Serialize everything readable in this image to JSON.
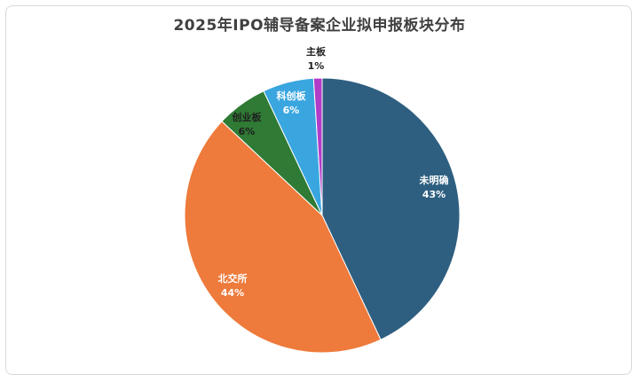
{
  "chart_data": {
    "type": "pie",
    "title": "2025年IPO辅导备案企业拟申报板块分布",
    "start_angle_deg": 0,
    "direction": "clockwise",
    "slices": [
      {
        "label": "未明确",
        "value": 43,
        "value_text": "43%",
        "color": "#2e5f80",
        "label_color": "#ffffff"
      },
      {
        "label": "北交所",
        "value": 44,
        "value_text": "44%",
        "color": "#ee7a3b",
        "label_color": "#ffffff"
      },
      {
        "label": "创业板",
        "value": 6,
        "value_text": "6%",
        "color": "#2f7a34",
        "label_color": "#202020"
      },
      {
        "label": "科创板",
        "value": 6,
        "value_text": "6%",
        "color": "#3aa6e0",
        "label_color": "#ffffff"
      },
      {
        "label": "主板",
        "value": 1,
        "value_text": "1%",
        "color": "#b03cc7",
        "label_color": "#202020"
      }
    ]
  }
}
